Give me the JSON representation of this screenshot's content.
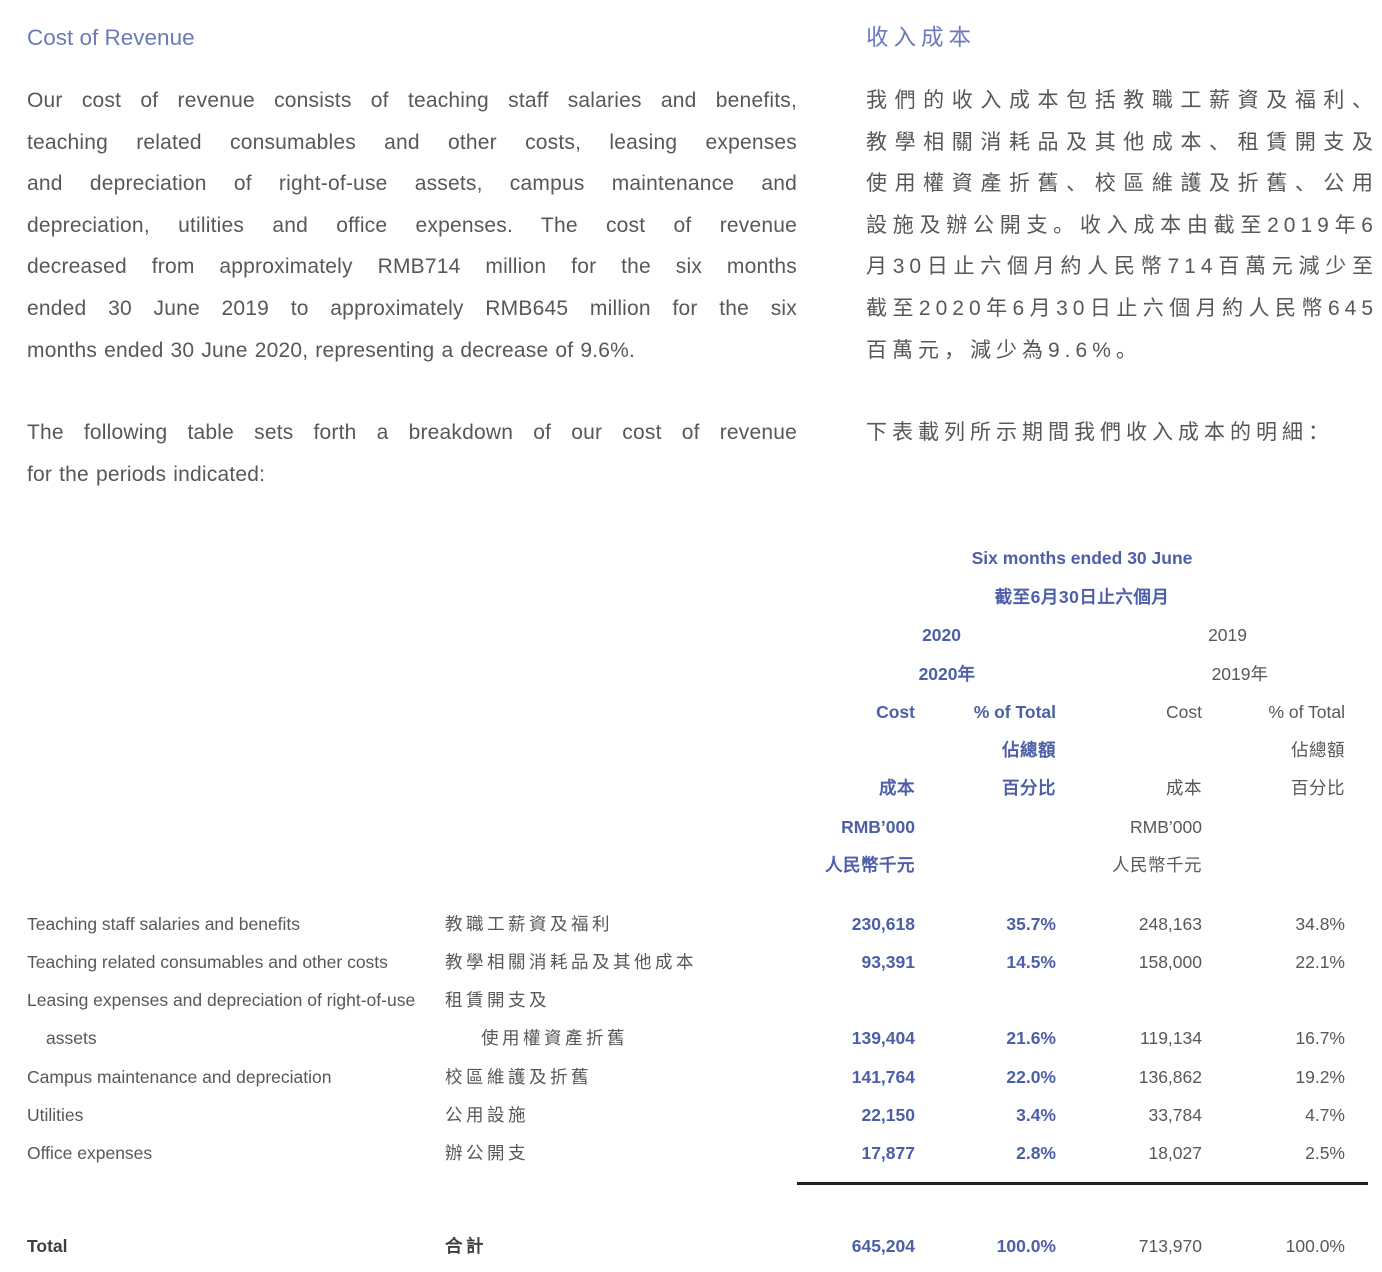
{
  "colors": {
    "title_blue": "#6b7ab8",
    "table_bold_blue": "#4d5fa7",
    "body_text": "#58585a",
    "rule": "#231f20"
  },
  "page": {
    "title_en": "Cost of Revenue",
    "title_zh": "收入成本",
    "para1_en_lines": [
      "Our cost of revenue consists of teaching staff salaries and benefits,",
      "teaching related consumables and other costs, leasing expenses",
      "and depreciation of right-of-use assets, campus maintenance and",
      "depreciation, utilities and office expenses. The cost of revenue",
      "decreased from approximately RMB714 million for the six months",
      "ended 30 June 2019 to approximately RMB645 million for the six",
      "months ended 30 June 2020, representing a decrease of 9.6%."
    ],
    "para1_zh_lines": [
      "我們的收入成本包括教職工薪資及福利、",
      "教學相關消耗品及其他成本、租賃開支及",
      "使用權資產折舊、校區維護及折舊、公用",
      "設施及辦公開支。收入成本由截至2019年6",
      "月30日止六個月約人民幣714百萬元減少至",
      "截至2020年6月30日止六個月約人民幣645",
      "百萬元，減少為9.6%。"
    ],
    "para2_en_lines": [
      "The following table sets forth a breakdown of our cost of revenue",
      "for the periods indicated:"
    ],
    "para2_zh": "下表載列所示期間我們收入成本的明細："
  },
  "table": {
    "period_en": "Six months ended 30 June",
    "period_zh": "截至6月30日止六個月",
    "year_2020_en": "2020",
    "year_2020_zh": "2020年",
    "year_2019_en": "2019",
    "year_2019_zh": "2019年",
    "col_cost_en": "Cost",
    "col_cost_zh": "成本",
    "col_pct_en": "% of Total",
    "col_pct_zh_1": "佔總額",
    "col_pct_zh_2": "百分比",
    "unit_en": "RMB’000",
    "unit_zh": "人民幣千元",
    "rows": [
      {
        "en": "Teaching staff salaries and benefits",
        "zh": "教職工薪資及福利",
        "cost_2020": "230,618",
        "pct_2020": "35.7%",
        "cost_2019": "248,163",
        "pct_2019": "34.8%"
      },
      {
        "en": "Teaching related consumables and other costs",
        "zh": "教學相關消耗品及其他成本",
        "cost_2020": "93,391",
        "pct_2020": "14.5%",
        "cost_2019": "158,000",
        "pct_2019": "22.1%"
      },
      {
        "en": "Leasing expenses and depreciation of right-of-use",
        "zh": "租賃開支及",
        "cost_2020": "",
        "pct_2020": "",
        "cost_2019": "",
        "pct_2019": ""
      },
      {
        "en": "assets",
        "zh": "使用權資產折舊",
        "cost_2020": "139,404",
        "pct_2020": "21.6%",
        "cost_2019": "119,134",
        "pct_2019": "16.7%"
      },
      {
        "en": "Campus maintenance and depreciation",
        "zh": "校區維護及折舊",
        "cost_2020": "141,764",
        "pct_2020": "22.0%",
        "cost_2019": "136,862",
        "pct_2019": "19.2%"
      },
      {
        "en": "Utilities",
        "zh": "公用設施",
        "cost_2020": "22,150",
        "pct_2020": "3.4%",
        "cost_2019": "33,784",
        "pct_2019": "4.7%"
      },
      {
        "en": "Office expenses",
        "zh": "辦公開支",
        "cost_2020": "17,877",
        "pct_2020": "2.8%",
        "cost_2019": "18,027",
        "pct_2019": "2.5%"
      }
    ],
    "total": {
      "en": "Total",
      "zh": "合計",
      "cost_2020": "645,204",
      "pct_2020": "100.0%",
      "cost_2019": "713,970",
      "pct_2019": "100.0%"
    }
  }
}
